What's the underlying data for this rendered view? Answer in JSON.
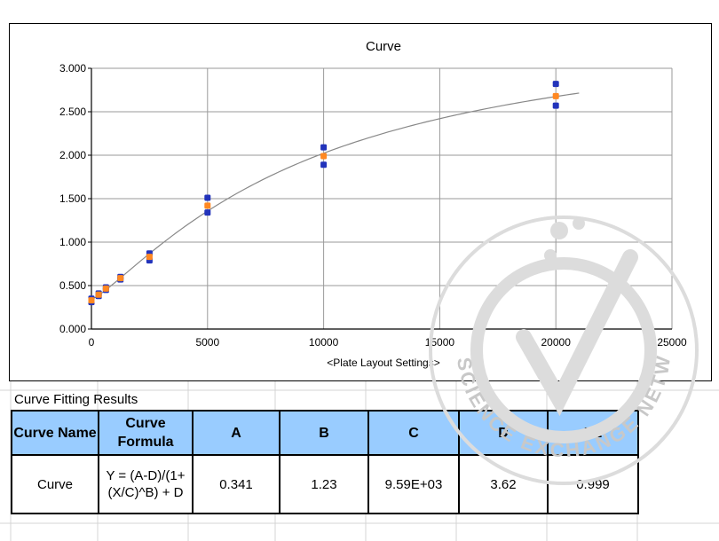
{
  "chart_data": {
    "type": "scatter",
    "title": "Curve",
    "xlabel": "<Plate Layout Settings>",
    "ylabel": "",
    "xlim": [
      0,
      25000
    ],
    "ylim": [
      0,
      3
    ],
    "x_ticks": [
      "0",
      "5000",
      "10000",
      "15000",
      "20000",
      "25000"
    ],
    "y_ticks": [
      "0.000",
      "0.500",
      "1.000",
      "1.500",
      "2.000",
      "2.500",
      "3.000"
    ],
    "grid": true,
    "series": [
      {
        "color": "#2233bb",
        "x": [
          0,
          0,
          312,
          312,
          625,
          625,
          1250,
          1250,
          2500,
          2500,
          5000,
          5000,
          10000,
          10000,
          20000,
          20000
        ],
        "y": [
          0.35,
          0.31,
          0.41,
          0.38,
          0.48,
          0.45,
          0.6,
          0.57,
          0.87,
          0.79,
          1.51,
          1.34,
          2.09,
          1.89,
          2.82,
          2.57
        ]
      },
      {
        "color": "#ff8822",
        "x": [
          0,
          312,
          625,
          1250,
          2500,
          5000,
          10000,
          20000
        ],
        "y": [
          0.33,
          0.395,
          0.465,
          0.585,
          0.83,
          1.42,
          1.99,
          2.68
        ]
      }
    ],
    "fit_curve": {
      "formula": "Y = (A-D)/(1+(X/C)^B) + D",
      "A": 0.341,
      "B": 1.23,
      "C": 9590,
      "D": 3.62,
      "x_range": [
        0,
        21000
      ],
      "color": "#888888"
    }
  },
  "results": {
    "label": "Curve Fitting Results",
    "headers": [
      "Curve Name",
      "Curve Formula",
      "A",
      "B",
      "C",
      "D",
      "R2"
    ],
    "row": [
      "Curve",
      "Y = (A-D)/(1+(X/C)^B) + D",
      "0.341",
      "1.23",
      "9.59E+03",
      "3.62",
      "0.999"
    ]
  },
  "watermark": {
    "text": "THE SCIENCE EXCHANGE NETWORK"
  }
}
